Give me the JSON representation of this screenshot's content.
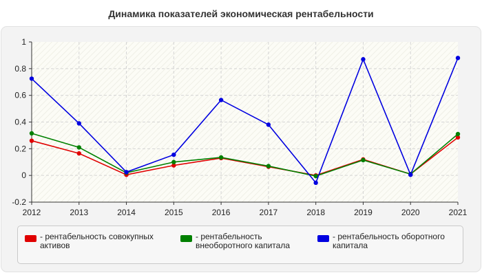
{
  "chart_data": {
    "type": "line",
    "title": "Динамика показателей экономическая рентабельности",
    "x": [
      "2012",
      "2013",
      "2014",
      "2015",
      "2016",
      "2017",
      "2018",
      "2019",
      "2020",
      "2021"
    ],
    "yticks": [
      "-0.2",
      "0",
      "0.2",
      "0.4",
      "0.6",
      "0.8",
      "1"
    ],
    "ylim": [
      -0.2,
      1
    ],
    "grid": true,
    "legend_position": "bottom",
    "series": [
      {
        "name": "- рентабельность совокупных активов",
        "color": "#e00000",
        "values": [
          0.26,
          0.165,
          0.005,
          0.075,
          0.13,
          0.065,
          0.0,
          0.12,
          0.01,
          0.285
        ]
      },
      {
        "name": "- рентабельность внеоборотного капитала",
        "color": "#008000",
        "values": [
          0.315,
          0.21,
          0.02,
          0.1,
          0.135,
          0.07,
          -0.005,
          0.115,
          0.01,
          0.31
        ]
      },
      {
        "name": "- рентабельность оборотного капитала",
        "color": "#0000e0",
        "values": [
          0.725,
          0.39,
          0.025,
          0.155,
          0.565,
          0.38,
          -0.055,
          0.87,
          0.005,
          0.88
        ]
      }
    ]
  }
}
